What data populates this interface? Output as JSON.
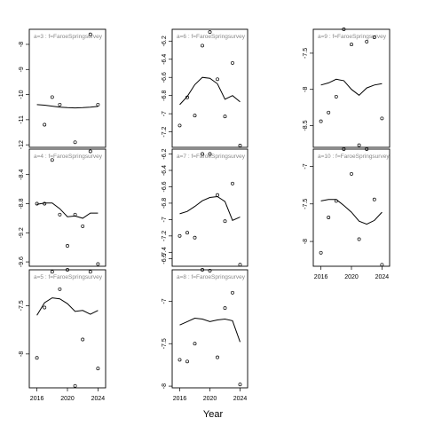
{
  "xlabel": "Year",
  "colors": {
    "points": "#000000",
    "line": "#000000",
    "strip_text": "#888888"
  },
  "chart_data": [
    {
      "type": "scatter",
      "label": "a=3 : f=FaroeSpringsurvey",
      "xlim": [
        2015,
        2025
      ],
      "ylim": [
        -12.1,
        -7.4
      ],
      "yticks": [
        -8,
        -9,
        -10,
        -11,
        -12
      ],
      "xticks": [],
      "points": [
        [
          2017,
          -11.2
        ],
        [
          2018,
          -10.1
        ],
        [
          2019,
          -10.4
        ],
        [
          2021,
          -11.9
        ],
        [
          2023,
          -7.6
        ],
        [
          2024,
          -10.4
        ]
      ],
      "smooth": [
        [
          2016,
          -10.4
        ],
        [
          2017,
          -10.42
        ],
        [
          2018,
          -10.46
        ],
        [
          2019,
          -10.5
        ],
        [
          2020,
          -10.52
        ],
        [
          2021,
          -10.53
        ],
        [
          2022,
          -10.52
        ],
        [
          2023,
          -10.5
        ],
        [
          2024,
          -10.47
        ]
      ]
    },
    {
      "type": "scatter",
      "label": "a=4 : f=FaroeSpringsurvey",
      "xlim": [
        2015,
        2025
      ],
      "ylim": [
        -9.66,
        -8.05
      ],
      "yticks": [
        -8.4,
        -8.8,
        -9.2,
        -9.6
      ],
      "xticks": [],
      "points": [
        [
          2016,
          -8.8
        ],
        [
          2017,
          -8.8
        ],
        [
          2018,
          -8.2
        ],
        [
          2019,
          -8.95
        ],
        [
          2020,
          -9.38
        ],
        [
          2021,
          -8.95
        ],
        [
          2022,
          -9.11
        ],
        [
          2023,
          -8.08
        ],
        [
          2024,
          -9.63
        ]
      ],
      "smooth": [
        [
          2016,
          -8.81
        ],
        [
          2017,
          -8.79
        ],
        [
          2018,
          -8.79
        ],
        [
          2019,
          -8.87
        ],
        [
          2020,
          -8.98
        ],
        [
          2021,
          -8.97
        ],
        [
          2022,
          -9.0
        ],
        [
          2023,
          -8.93
        ],
        [
          2024,
          -8.93
        ]
      ]
    },
    {
      "type": "scatter",
      "label": "a=5 : f=FaroeSpringsurvey",
      "xlim": [
        2015,
        2025
      ],
      "ylim": [
        -8.35,
        -7.13
      ],
      "yticks": [
        -7.5,
        -8.0
      ],
      "xticks": [
        2016,
        2020,
        2024
      ],
      "points": [
        [
          2016,
          -8.04
        ],
        [
          2017,
          -7.52
        ],
        [
          2018,
          -7.15
        ],
        [
          2019,
          -7.33
        ],
        [
          2020,
          -7.13
        ],
        [
          2021,
          -8.33
        ],
        [
          2022,
          -7.85
        ],
        [
          2023,
          -7.15
        ],
        [
          2024,
          -8.15
        ]
      ],
      "smooth": [
        [
          2016,
          -7.6
        ],
        [
          2017,
          -7.47
        ],
        [
          2018,
          -7.42
        ],
        [
          2019,
          -7.43
        ],
        [
          2020,
          -7.48
        ],
        [
          2021,
          -7.56
        ],
        [
          2022,
          -7.55
        ],
        [
          2023,
          -7.59
        ],
        [
          2024,
          -7.55
        ]
      ]
    },
    {
      "type": "scatter",
      "label": "a=6 : f=FaroeSpringsurvey",
      "xlim": [
        2015,
        2025
      ],
      "ylim": [
        -7.37,
        -6.07
      ],
      "yticks": [
        -6.2,
        -6.4,
        -6.6,
        -6.8,
        -7.0,
        -7.2
      ],
      "xticks": [],
      "points": [
        [
          2016,
          -7.13
        ],
        [
          2017,
          -6.82
        ],
        [
          2018,
          -7.02
        ],
        [
          2019,
          -6.25
        ],
        [
          2020,
          -6.1
        ],
        [
          2021,
          -6.62
        ],
        [
          2022,
          -7.03
        ],
        [
          2023,
          -6.44
        ],
        [
          2024,
          -7.35
        ]
      ],
      "smooth": [
        [
          2016,
          -6.9
        ],
        [
          2017,
          -6.81
        ],
        [
          2018,
          -6.68
        ],
        [
          2019,
          -6.6
        ],
        [
          2020,
          -6.61
        ],
        [
          2021,
          -6.67
        ],
        [
          2022,
          -6.84
        ],
        [
          2023,
          -6.8
        ],
        [
          2024,
          -6.87
        ]
      ]
    },
    {
      "type": "scatter",
      "label": "a=7 : f=FaroeSpringsurvey",
      "xlim": [
        2015,
        2025
      ],
      "ylim": [
        -7.57,
        -6.14
      ],
      "yticks": [
        -6.2,
        -6.4,
        -6.6,
        -6.8,
        -7.0,
        -7.2,
        -7.4
      ],
      "xticks": [],
      "points": [
        [
          2016,
          -7.2
        ],
        [
          2017,
          -7.16
        ],
        [
          2018,
          -7.22
        ],
        [
          2019,
          -6.2
        ],
        [
          2020,
          -6.2
        ],
        [
          2021,
          -6.7
        ],
        [
          2022,
          -7.02
        ],
        [
          2023,
          -6.56
        ],
        [
          2024,
          -7.55
        ]
      ],
      "smooth": [
        [
          2016,
          -6.93
        ],
        [
          2017,
          -6.9
        ],
        [
          2018,
          -6.84
        ],
        [
          2019,
          -6.77
        ],
        [
          2020,
          -6.73
        ],
        [
          2021,
          -6.72
        ],
        [
          2022,
          -6.78
        ],
        [
          2023,
          -7.01
        ],
        [
          2024,
          -6.97
        ]
      ]
    },
    {
      "type": "scatter",
      "label": "a=8 : f=FaroeSpringsurvey",
      "xlim": [
        2015,
        2025
      ],
      "ylim": [
        -8.02,
        -6.63
      ],
      "yticks": [
        -6.5,
        -7.0,
        -7.5,
        -8.0
      ],
      "xticks": [
        2016,
        2020,
        2024
      ],
      "points": [
        [
          2016,
          -7.69
        ],
        [
          2017,
          -7.71
        ],
        [
          2018,
          -7.5
        ],
        [
          2019,
          -6.63
        ],
        [
          2020,
          -6.64
        ],
        [
          2021,
          -7.66
        ],
        [
          2022,
          -7.08
        ],
        [
          2023,
          -6.9
        ],
        [
          2024,
          -7.98
        ]
      ],
      "smooth": [
        [
          2016,
          -7.28
        ],
        [
          2017,
          -7.24
        ],
        [
          2018,
          -7.2
        ],
        [
          2019,
          -7.21
        ],
        [
          2020,
          -7.24
        ],
        [
          2021,
          -7.22
        ],
        [
          2022,
          -7.21
        ],
        [
          2023,
          -7.23
        ],
        [
          2024,
          -7.48
        ]
      ]
    },
    {
      "type": "scatter",
      "label": "a=9 : f=FaroeSpringsurvey",
      "xlim": [
        2015,
        2025
      ],
      "ylim": [
        -8.8,
        -7.17
      ],
      "yticks": [
        -7.5,
        -8.0,
        -8.5
      ],
      "xticks": [],
      "points": [
        [
          2016,
          -8.44
        ],
        [
          2017,
          -8.32
        ],
        [
          2018,
          -8.1
        ],
        [
          2019,
          -7.17
        ],
        [
          2020,
          -7.38
        ],
        [
          2021,
          -8.77
        ],
        [
          2022,
          -7.34
        ],
        [
          2023,
          -7.28
        ],
        [
          2024,
          -8.4
        ]
      ],
      "smooth": [
        [
          2016,
          -7.94
        ],
        [
          2017,
          -7.91
        ],
        [
          2018,
          -7.86
        ],
        [
          2019,
          -7.88
        ],
        [
          2020,
          -8.0
        ],
        [
          2021,
          -8.08
        ],
        [
          2022,
          -7.98
        ],
        [
          2023,
          -7.94
        ],
        [
          2024,
          -7.92
        ]
      ]
    },
    {
      "type": "scatter",
      "label": "a=10 : f=FaroeSpringsurvey",
      "xlim": [
        2015,
        2025
      ],
      "ylim": [
        -8.33,
        -6.77
      ],
      "yticks": [
        -7.0,
        -7.5,
        -8.0
      ],
      "xticks": [
        2016,
        2020,
        2024
      ],
      "points": [
        [
          2016,
          -8.15
        ],
        [
          2017,
          -7.68
        ],
        [
          2018,
          -7.46
        ],
        [
          2019,
          -6.77
        ],
        [
          2020,
          -7.1
        ],
        [
          2021,
          -7.97
        ],
        [
          2022,
          -6.77
        ],
        [
          2023,
          -7.44
        ],
        [
          2024,
          -8.31
        ]
      ],
      "smooth": [
        [
          2016,
          -7.46
        ],
        [
          2017,
          -7.44
        ],
        [
          2018,
          -7.44
        ],
        [
          2019,
          -7.52
        ],
        [
          2020,
          -7.61
        ],
        [
          2021,
          -7.73
        ],
        [
          2022,
          -7.77
        ],
        [
          2023,
          -7.72
        ],
        [
          2024,
          -7.61
        ]
      ]
    }
  ]
}
